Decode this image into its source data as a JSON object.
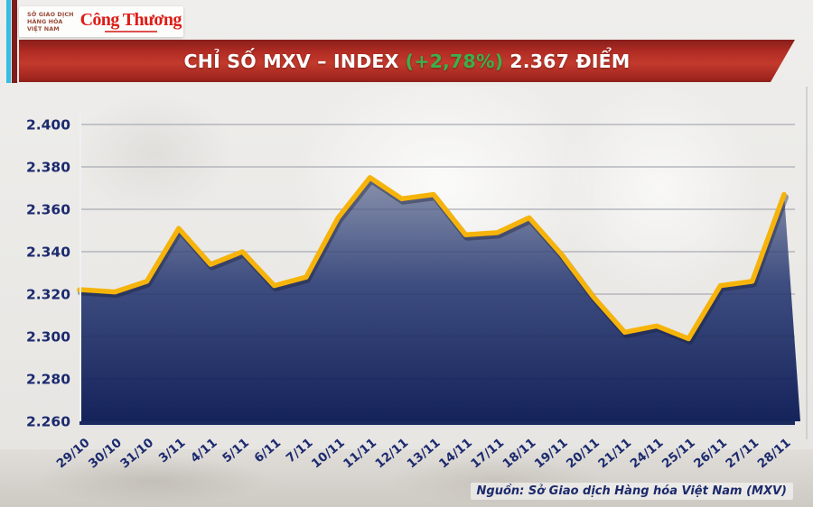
{
  "header": {
    "logo": {
      "org_lines": [
        "SỞ GIAO DỊCH",
        "HÀNG HÓA",
        "VIỆT NAM"
      ],
      "brand": "Công Thương",
      "brand_color": "#dc1d17",
      "logo_color": "#2aabe2"
    },
    "banner": {
      "title_prefix": "CHỈ SỐ MXV – INDEX",
      "change": "(+2,78%)",
      "title_suffix": "2.367 ĐIỂM",
      "change_color": "#3bb04a"
    }
  },
  "footer": {
    "source": "Nguồn: Sở Giao dịch Hàng hóa Việt Nam (MXV)"
  },
  "chart_data": {
    "type": "area",
    "title": "CHỈ SỐ MXV – INDEX (+2,78%) 2.367 ĐIỂM",
    "categories": [
      "29/10",
      "30/10",
      "31/10",
      "3/11",
      "4/11",
      "5/11",
      "6/11",
      "7/11",
      "10/11",
      "11/11",
      "12/11",
      "13/11",
      "14/11",
      "17/11",
      "18/11",
      "19/11",
      "20/11",
      "21/11",
      "24/11",
      "25/11",
      "26/11",
      "27/11",
      "28/11"
    ],
    "values": [
      2322,
      2321,
      2326,
      2351,
      2334,
      2340,
      2324,
      2328,
      2356,
      2375,
      2365,
      2367,
      2348,
      2349,
      2356,
      2339,
      2319,
      2302,
      2305,
      2299,
      2324,
      2326,
      2367
    ],
    "unit": "điểm",
    "ylim": [
      2260,
      2400
    ],
    "y_ticks": [
      {
        "value": 2400,
        "label": "2.400"
      },
      {
        "value": 2380,
        "label": "2.380"
      },
      {
        "value": 2360,
        "label": "2.360"
      },
      {
        "value": 2340,
        "label": "2.340"
      },
      {
        "value": 2320,
        "label": "2.320"
      },
      {
        "value": 2300,
        "label": "2.300"
      },
      {
        "value": 2280,
        "label": "2.280"
      },
      {
        "value": 2260,
        "label": "2.260"
      }
    ],
    "grid": true,
    "legend": false,
    "x_label_rotation": -40,
    "line_color": "#f6b40b",
    "line_shadow_color": "rgba(25,30,55,0.40)",
    "area_gradient": [
      "#8d96af",
      "#3e4d80",
      "#15235b"
    ],
    "axis_text_color": "#1c2a6e",
    "gridline_color": "#c5c6ca",
    "axis_line_color": "#1b2a5e"
  }
}
